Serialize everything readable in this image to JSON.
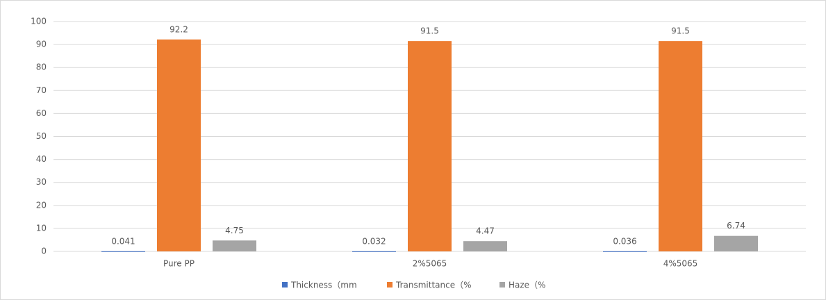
{
  "chart_data": {
    "type": "bar",
    "categories": [
      "Pure PP",
      "2%5065",
      "4%5065"
    ],
    "series": [
      {
        "name": "Thickness（mm",
        "color": "#4472c4",
        "values": [
          0.041,
          0.032,
          0.036
        ]
      },
      {
        "name": "Transmittance（%",
        "color": "#ed7d31",
        "values": [
          92.2,
          91.5,
          91.5
        ]
      },
      {
        "name": "Haze（%",
        "color": "#a5a5a5",
        "values": [
          4.75,
          4.47,
          6.74
        ]
      }
    ],
    "ylim": [
      0,
      100
    ],
    "yticks": [
      0,
      10,
      20,
      30,
      40,
      50,
      60,
      70,
      80,
      90,
      100
    ],
    "grid": true,
    "legend": "bottom"
  }
}
